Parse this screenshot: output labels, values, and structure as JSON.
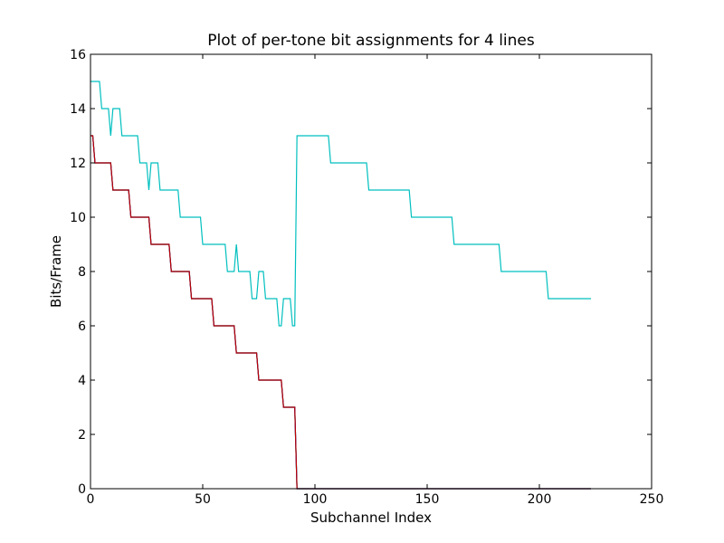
{
  "chart_data": {
    "type": "line",
    "title": "Plot of per-tone bit assignments for 4 lines",
    "xlabel": "Subchannel Index",
    "ylabel": "Bits/Frame",
    "xlim": [
      0,
      250
    ],
    "ylim": [
      0,
      16
    ],
    "xticks": [
      0,
      50,
      100,
      150,
      200,
      250
    ],
    "yticks": [
      0,
      2,
      4,
      6,
      8,
      10,
      12,
      14,
      16
    ],
    "grid": false,
    "legend": "none",
    "series": [
      {
        "color": "#00bfbf",
        "points": [
          [
            0,
            15
          ],
          [
            4,
            15
          ],
          [
            5,
            14
          ],
          [
            8,
            14
          ],
          [
            9,
            13
          ],
          [
            10,
            14
          ],
          [
            13,
            14
          ],
          [
            14,
            13
          ],
          [
            21,
            13
          ],
          [
            22,
            12
          ],
          [
            25,
            12
          ],
          [
            26,
            11
          ],
          [
            27,
            12
          ],
          [
            30,
            12
          ],
          [
            31,
            11
          ],
          [
            39,
            11
          ],
          [
            40,
            10
          ],
          [
            49,
            10
          ],
          [
            50,
            9
          ],
          [
            60,
            9
          ],
          [
            61,
            8
          ],
          [
            64,
            8
          ],
          [
            65,
            9
          ],
          [
            66,
            8
          ],
          [
            71,
            8
          ],
          [
            72,
            7
          ],
          [
            74,
            7
          ],
          [
            75,
            8
          ],
          [
            77,
            8
          ],
          [
            78,
            7
          ],
          [
            83,
            7
          ],
          [
            84,
            6
          ],
          [
            85,
            6
          ],
          [
            86,
            7
          ],
          [
            89,
            7
          ],
          [
            90,
            6
          ],
          [
            91,
            6
          ],
          [
            92,
            13
          ],
          [
            106,
            13
          ],
          [
            107,
            12
          ],
          [
            123,
            12
          ],
          [
            124,
            11
          ],
          [
            142,
            11
          ],
          [
            143,
            10
          ],
          [
            161,
            10
          ],
          [
            162,
            9
          ],
          [
            182,
            9
          ],
          [
            183,
            8
          ],
          [
            203,
            8
          ],
          [
            204,
            7
          ],
          [
            223,
            7
          ]
        ]
      },
      {
        "color": "#00bf00",
        "points": [
          [
            0,
            13
          ],
          [
            1,
            13
          ],
          [
            2,
            12
          ],
          [
            9,
            12
          ],
          [
            10,
            11
          ],
          [
            17,
            11
          ],
          [
            18,
            10
          ],
          [
            26,
            10
          ],
          [
            27,
            9
          ],
          [
            35,
            9
          ],
          [
            36,
            8
          ],
          [
            44,
            8
          ],
          [
            45,
            7
          ],
          [
            54,
            7
          ],
          [
            55,
            6
          ],
          [
            64,
            6
          ],
          [
            65,
            5
          ],
          [
            74,
            5
          ],
          [
            75,
            4
          ],
          [
            85,
            4
          ],
          [
            86,
            3
          ],
          [
            91,
            3
          ],
          [
            92,
            0
          ],
          [
            223,
            0
          ]
        ]
      },
      {
        "color": "#0000ff",
        "points": [
          [
            0,
            13
          ],
          [
            1,
            13
          ],
          [
            2,
            12
          ],
          [
            9,
            12
          ],
          [
            10,
            11
          ],
          [
            17,
            11
          ],
          [
            18,
            10
          ],
          [
            26,
            10
          ],
          [
            27,
            9
          ],
          [
            35,
            9
          ],
          [
            36,
            8
          ],
          [
            44,
            8
          ],
          [
            45,
            7
          ],
          [
            54,
            7
          ],
          [
            55,
            6
          ],
          [
            64,
            6
          ],
          [
            65,
            5
          ],
          [
            74,
            5
          ],
          [
            75,
            4
          ],
          [
            85,
            4
          ],
          [
            86,
            3
          ],
          [
            91,
            3
          ],
          [
            92,
            0
          ],
          [
            223,
            0
          ]
        ]
      },
      {
        "color": "#bf0000",
        "points": [
          [
            0,
            13
          ],
          [
            1,
            13
          ],
          [
            2,
            12
          ],
          [
            9,
            12
          ],
          [
            10,
            11
          ],
          [
            17,
            11
          ],
          [
            18,
            10
          ],
          [
            26,
            10
          ],
          [
            27,
            9
          ],
          [
            35,
            9
          ],
          [
            36,
            8
          ],
          [
            44,
            8
          ],
          [
            45,
            7
          ],
          [
            54,
            7
          ],
          [
            55,
            6
          ],
          [
            64,
            6
          ],
          [
            65,
            5
          ],
          [
            74,
            5
          ],
          [
            75,
            4
          ],
          [
            85,
            4
          ],
          [
            86,
            3
          ],
          [
            91,
            3
          ],
          [
            92,
            0
          ],
          [
            223,
            0
          ]
        ]
      }
    ]
  }
}
